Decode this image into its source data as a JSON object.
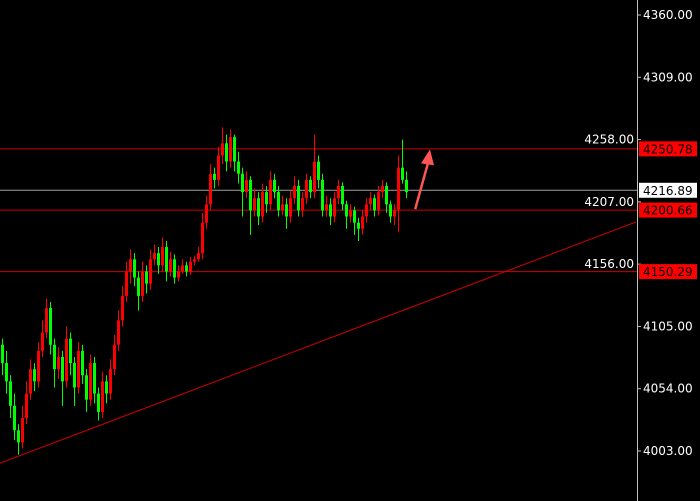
{
  "chart_data": {
    "type": "candlestick",
    "ylim": [
      3993,
      4378
    ],
    "y_ticks": [
      "4360.00",
      "4309.00",
      "4258.00",
      "4207.00",
      "4156.00",
      "4105.00",
      "4054.00",
      "4003.00"
    ],
    "grid": false,
    "colors": {
      "background": "#000000",
      "up": "#ff0000",
      "down": "#00ff00",
      "level_line": "#d00000",
      "current_line": "#a0a0a0",
      "trendline": "#d00000",
      "arrow": "#ff5555",
      "axis": "#c0c0c0",
      "axis_text": "#ffffff"
    },
    "levels": [
      {
        "price": 4250.78,
        "label": "4250.78"
      },
      {
        "price": 4200.66,
        "label": "4200.66"
      },
      {
        "price": 4150.29,
        "label": "4150.29"
      }
    ],
    "current_price": {
      "price": 4216.89,
      "label": "4216.89"
    },
    "trendline": {
      "start": {
        "index": -0.5,
        "price": 3993
      },
      "end": {
        "index": 158.5,
        "price": 4190.5
      }
    },
    "arrow": {
      "start": {
        "index": 103.3,
        "price": 4201
      },
      "end": {
        "index": 107,
        "price": 4250
      }
    },
    "candles_ohlc": [
      [
        4090,
        4095,
        4065,
        4075
      ],
      [
        4075,
        4085,
        4050,
        4060
      ],
      [
        4060,
        4065,
        4030,
        4040
      ],
      [
        4040,
        4050,
        4012,
        4020
      ],
      [
        4020,
        4025,
        4000,
        4010
      ],
      [
        4010,
        4040,
        4005,
        4030
      ],
      [
        4030,
        4060,
        4025,
        4050
      ],
      [
        4050,
        4078,
        4045,
        4070
      ],
      [
        4070,
        4075,
        4052,
        4060
      ],
      [
        4060,
        4092,
        4055,
        4085
      ],
      [
        4085,
        4110,
        4080,
        4100
      ],
      [
        4100,
        4128,
        4095,
        4120
      ],
      [
        4120,
        4125,
        4082,
        4090
      ],
      [
        4090,
        4095,
        4055,
        4070
      ],
      [
        4070,
        4088,
        4062,
        4080
      ],
      [
        4080,
        4085,
        4040,
        4060
      ],
      [
        4060,
        4105,
        4055,
        4095
      ],
      [
        4095,
        4100,
        4065,
        4075
      ],
      [
        4075,
        4080,
        4040,
        4055
      ],
      [
        4055,
        4092,
        4050,
        4085
      ],
      [
        4085,
        4090,
        4058,
        4065
      ],
      [
        4065,
        4070,
        4035,
        4045
      ],
      [
        4045,
        4082,
        4040,
        4075
      ],
      [
        4075,
        4080,
        4042,
        4050
      ],
      [
        4050,
        4055,
        4028,
        4035
      ],
      [
        4035,
        4068,
        4030,
        4060
      ],
      [
        4060,
        4065,
        4042,
        4050
      ],
      [
        4050,
        4078,
        4045,
        4070
      ],
      [
        4070,
        4098,
        4065,
        4090
      ],
      [
        4090,
        4118,
        4085,
        4110
      ],
      [
        4110,
        4138,
        4105,
        4130
      ],
      [
        4130,
        4158,
        4125,
        4150
      ],
      [
        4150,
        4168,
        4140,
        4160
      ],
      [
        4160,
        4165,
        4138,
        4145
      ],
      [
        4145,
        4150,
        4118,
        4130
      ],
      [
        4130,
        4158,
        4125,
        4150
      ],
      [
        4150,
        4155,
        4132,
        4140
      ],
      [
        4140,
        4168,
        4135,
        4160
      ],
      [
        4160,
        4172,
        4155,
        4165
      ],
      [
        4165,
        4170,
        4148,
        4155
      ],
      [
        4155,
        4178,
        4150,
        4170
      ],
      [
        4170,
        4175,
        4142,
        4150
      ],
      [
        4150,
        4166,
        4146,
        4160
      ],
      [
        4160,
        4164,
        4140,
        4145
      ],
      [
        4145,
        4155,
        4142,
        4150
      ],
      [
        4150,
        4160,
        4148,
        4155
      ],
      [
        4155,
        4158,
        4146,
        4150
      ],
      [
        4150,
        4162,
        4147,
        4158
      ],
      [
        4158,
        4163,
        4155,
        4160
      ],
      [
        4160,
        4170,
        4158,
        4165
      ],
      [
        4165,
        4198,
        4160,
        4190
      ],
      [
        4190,
        4212,
        4185,
        4205
      ],
      [
        4205,
        4238,
        4200,
        4230
      ],
      [
        4230,
        4235,
        4218,
        4225
      ],
      [
        4225,
        4252,
        4220,
        4245
      ],
      [
        4245,
        4268,
        4238,
        4255
      ],
      [
        4255,
        4262,
        4232,
        4240
      ],
      [
        4240,
        4266,
        4235,
        4260
      ],
      [
        4260,
        4262,
        4232,
        4240
      ],
      [
        4240,
        4248,
        4222,
        4230
      ],
      [
        4230,
        4235,
        4195,
        4215
      ],
      [
        4215,
        4232,
        4210,
        4225
      ],
      [
        4225,
        4228,
        4180,
        4200
      ],
      [
        4200,
        4218,
        4195,
        4210
      ],
      [
        4210,
        4215,
        4188,
        4195
      ],
      [
        4195,
        4222,
        4190,
        4215
      ],
      [
        4215,
        4220,
        4198,
        4205
      ],
      [
        4205,
        4232,
        4200,
        4225
      ],
      [
        4225,
        4230,
        4210,
        4215
      ],
      [
        4215,
        4220,
        4195,
        4200
      ],
      [
        4200,
        4212,
        4196,
        4205
      ],
      [
        4205,
        4210,
        4185,
        4195
      ],
      [
        4195,
        4216,
        4190,
        4210
      ],
      [
        4210,
        4228,
        4205,
        4220
      ],
      [
        4220,
        4225,
        4195,
        4200
      ],
      [
        4200,
        4215,
        4195,
        4210
      ],
      [
        4210,
        4230,
        4205,
        4225
      ],
      [
        4225,
        4228,
        4210,
        4215
      ],
      [
        4215,
        4262,
        4210,
        4240
      ],
      [
        4240,
        4245,
        4218,
        4225
      ],
      [
        4225,
        4230,
        4195,
        4200
      ],
      [
        4200,
        4212,
        4195,
        4205
      ],
      [
        4205,
        4210,
        4188,
        4195
      ],
      [
        4195,
        4215,
        4190,
        4210
      ],
      [
        4210,
        4225,
        4205,
        4220
      ],
      [
        4220,
        4223,
        4200,
        4205
      ],
      [
        4205,
        4208,
        4185,
        4195
      ],
      [
        4195,
        4205,
        4190,
        4200
      ],
      [
        4200,
        4203,
        4180,
        4190
      ],
      [
        4190,
        4194,
        4175,
        4185
      ],
      [
        4185,
        4200,
        4180,
        4195
      ],
      [
        4195,
        4210,
        4190,
        4205
      ],
      [
        4205,
        4215,
        4200,
        4210
      ],
      [
        4210,
        4213,
        4195,
        4200
      ],
      [
        4200,
        4220,
        4196,
        4215
      ],
      [
        4215,
        4225,
        4210,
        4220
      ],
      [
        4220,
        4223,
        4198,
        4205
      ],
      [
        4205,
        4208,
        4190,
        4195
      ],
      [
        4195,
        4205,
        4188,
        4200
      ],
      [
        4200,
        4245,
        4182,
        4235
      ],
      [
        4235,
        4258,
        4222,
        4225
      ],
      [
        4225,
        4232,
        4210,
        4215
      ]
    ]
  }
}
